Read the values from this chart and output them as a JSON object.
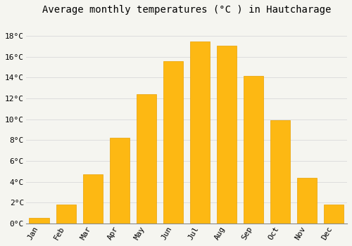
{
  "title": "Average monthly temperatures (°C ) in Hautcharage",
  "months": [
    "Jan",
    "Feb",
    "Mar",
    "Apr",
    "May",
    "Jun",
    "Jul",
    "Aug",
    "Sep",
    "Oct",
    "Nov",
    "Dec"
  ],
  "values": [
    0.5,
    1.8,
    4.7,
    8.2,
    12.4,
    15.6,
    17.5,
    17.1,
    14.2,
    9.9,
    4.4,
    1.8
  ],
  "bar_color": "#FDB813",
  "bar_edge_color": "#E8A000",
  "background_color": "#F5F5F0",
  "plot_bg_color": "#F5F5F0",
  "grid_color": "#DDDDDD",
  "yticks": [
    0,
    2,
    4,
    6,
    8,
    10,
    12,
    14,
    16,
    18
  ],
  "ylim": [
    0,
    19.5
  ],
  "title_fontsize": 10,
  "tick_fontsize": 8,
  "font_family": "monospace"
}
